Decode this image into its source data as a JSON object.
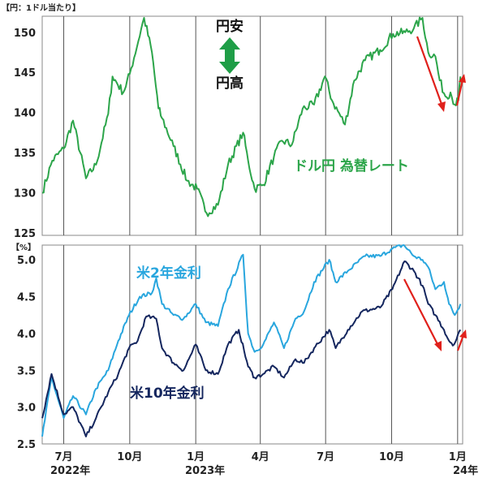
{
  "colors": {
    "usdjpy": "#2ca54a",
    "us2y": "#29a6de",
    "us10y": "#14265e",
    "arrow_red": "#e0201b",
    "arrow_green": "#1f9e47",
    "grid": "#999999"
  },
  "top_axis_unit": "【円：1ドル当たり】",
  "bottom_axis_unit": "【%】",
  "annotations": {
    "yen_weak": "円安",
    "yen_strong": "円高",
    "usdjpy_label": "ドル円 為替レート",
    "us2y_label": "米2年金利",
    "us10y_label": "米10年金利"
  },
  "x_axis": {
    "month_labels": [
      "7月",
      "10月",
      "1月",
      "4月",
      "7月",
      "10月",
      "1月"
    ],
    "year_labels": [
      "2022年",
      "2023年",
      "24年"
    ]
  },
  "chart_data": [
    {
      "type": "line",
      "title": "",
      "ylabel": "【円：1ドル当たり】",
      "ylim": [
        125,
        152
      ],
      "yticks": [
        125,
        130,
        135,
        140,
        145,
        150
      ],
      "x_range": [
        "2022-06-01",
        "2024-01-08"
      ],
      "grid": "vertical lines at quarter boundaries",
      "series": [
        {
          "name": "ドル円 為替レート",
          "points": [
            [
              "2022-06-01",
              130.0
            ],
            [
              "2022-06-15",
              134.0
            ],
            [
              "2022-07-01",
              135.5
            ],
            [
              "2022-07-14",
              139.0
            ],
            [
              "2022-08-01",
              131.8
            ],
            [
              "2022-08-15",
              133.5
            ],
            [
              "2022-09-01",
              139.8
            ],
            [
              "2022-09-07",
              144.5
            ],
            [
              "2022-09-22",
              142.5
            ],
            [
              "2022-10-01",
              144.8
            ],
            [
              "2022-10-21",
              151.8
            ],
            [
              "2022-11-01",
              147.5
            ],
            [
              "2022-11-10",
              140.5
            ],
            [
              "2022-11-15",
              139.3
            ],
            [
              "2022-12-01",
              135.8
            ],
            [
              "2022-12-20",
              131.5
            ],
            [
              "2023-01-03",
              130.5
            ],
            [
              "2023-01-16",
              127.5
            ],
            [
              "2023-02-01",
              128.5
            ],
            [
              "2023-02-15",
              133.5
            ],
            [
              "2023-03-08",
              137.5
            ],
            [
              "2023-03-15",
              134.0
            ],
            [
              "2023-03-24",
              130.5
            ],
            [
              "2023-04-05",
              131.0
            ],
            [
              "2023-04-20",
              134.5
            ],
            [
              "2023-05-01",
              136.5
            ],
            [
              "2023-05-15",
              136.0
            ],
            [
              "2023-05-30",
              140.5
            ],
            [
              "2023-06-15",
              141.0
            ],
            [
              "2023-06-30",
              144.5
            ],
            [
              "2023-07-10",
              141.5
            ],
            [
              "2023-07-28",
              138.5
            ],
            [
              "2023-08-10",
              144.0
            ],
            [
              "2023-08-25",
              146.5
            ],
            [
              "2023-09-15",
              147.8
            ],
            [
              "2023-10-03",
              149.8
            ],
            [
              "2023-10-20",
              150.0
            ],
            [
              "2023-11-01",
              150.5
            ],
            [
              "2023-11-13",
              151.8
            ],
            [
              "2023-11-21",
              147.5
            ],
            [
              "2023-12-01",
              147.0
            ],
            [
              "2023-12-07",
              144.0
            ],
            [
              "2023-12-15",
              142.0
            ],
            [
              "2023-12-22",
              142.5
            ],
            [
              "2023-12-28",
              141.0
            ],
            [
              "2024-01-02",
              141.5
            ],
            [
              "2024-01-05",
              144.5
            ]
          ]
        }
      ]
    },
    {
      "type": "line",
      "title": "",
      "ylabel": "【%】",
      "ylim": [
        2.5,
        5.2
      ],
      "yticks": [
        2.5,
        3.0,
        3.5,
        4.0,
        4.5,
        5.0
      ],
      "x_range": [
        "2022-06-01",
        "2024-01-08"
      ],
      "grid": "vertical lines at quarter boundaries",
      "series": [
        {
          "name": "米2年金利",
          "points": [
            [
              "2022-06-01",
              2.6
            ],
            [
              "2022-06-14",
              3.4
            ],
            [
              "2022-07-01",
              2.85
            ],
            [
              "2022-07-14",
              3.15
            ],
            [
              "2022-08-01",
              2.9
            ],
            [
              "2022-08-15",
              3.25
            ],
            [
              "2022-09-01",
              3.5
            ],
            [
              "2022-09-15",
              3.9
            ],
            [
              "2022-09-30",
              4.25
            ],
            [
              "2022-10-15",
              4.5
            ],
            [
              "2022-11-01",
              4.55
            ],
            [
              "2022-11-07",
              4.75
            ],
            [
              "2022-11-15",
              4.4
            ],
            [
              "2022-12-01",
              4.25
            ],
            [
              "2022-12-15",
              4.2
            ],
            [
              "2023-01-01",
              4.4
            ],
            [
              "2023-01-15",
              4.15
            ],
            [
              "2023-02-01",
              4.1
            ],
            [
              "2023-02-15",
              4.6
            ],
            [
              "2023-03-08",
              5.07
            ],
            [
              "2023-03-15",
              4.0
            ],
            [
              "2023-03-24",
              3.75
            ],
            [
              "2023-04-05",
              3.85
            ],
            [
              "2023-04-20",
              4.15
            ],
            [
              "2023-05-04",
              3.8
            ],
            [
              "2023-05-20",
              4.2
            ],
            [
              "2023-06-01",
              4.3
            ],
            [
              "2023-06-15",
              4.7
            ],
            [
              "2023-07-06",
              5.0
            ],
            [
              "2023-07-15",
              4.7
            ],
            [
              "2023-08-01",
              4.85
            ],
            [
              "2023-08-25",
              5.05
            ],
            [
              "2023-09-15",
              5.05
            ],
            [
              "2023-10-02",
              5.15
            ],
            [
              "2023-10-18",
              5.2
            ],
            [
              "2023-11-01",
              5.05
            ],
            [
              "2023-11-13",
              5.0
            ],
            [
              "2023-11-21",
              4.9
            ],
            [
              "2023-12-01",
              4.6
            ],
            [
              "2023-12-13",
              4.7
            ],
            [
              "2023-12-20",
              4.4
            ],
            [
              "2023-12-28",
              4.25
            ],
            [
              "2024-01-05",
              4.4
            ]
          ]
        },
        {
          "name": "米10年金利",
          "points": [
            [
              "2022-06-01",
              2.85
            ],
            [
              "2022-06-14",
              3.45
            ],
            [
              "2022-07-01",
              2.9
            ],
            [
              "2022-07-14",
              3.0
            ],
            [
              "2022-08-01",
              2.6
            ],
            [
              "2022-08-15",
              2.85
            ],
            [
              "2022-09-01",
              3.2
            ],
            [
              "2022-09-15",
              3.45
            ],
            [
              "2022-09-30",
              3.8
            ],
            [
              "2022-10-12",
              3.9
            ],
            [
              "2022-10-24",
              4.23
            ],
            [
              "2022-11-07",
              4.2
            ],
            [
              "2022-11-15",
              3.8
            ],
            [
              "2022-12-01",
              3.6
            ],
            [
              "2022-12-15",
              3.5
            ],
            [
              "2023-01-01",
              3.85
            ],
            [
              "2023-01-15",
              3.5
            ],
            [
              "2023-02-01",
              3.45
            ],
            [
              "2023-02-15",
              3.85
            ],
            [
              "2023-03-02",
              4.05
            ],
            [
              "2023-03-15",
              3.55
            ],
            [
              "2023-03-24",
              3.4
            ],
            [
              "2023-04-05",
              3.45
            ],
            [
              "2023-04-20",
              3.55
            ],
            [
              "2023-05-04",
              3.4
            ],
            [
              "2023-05-20",
              3.65
            ],
            [
              "2023-06-01",
              3.6
            ],
            [
              "2023-06-15",
              3.8
            ],
            [
              "2023-07-06",
              4.05
            ],
            [
              "2023-07-15",
              3.8
            ],
            [
              "2023-08-01",
              4.05
            ],
            [
              "2023-08-21",
              4.3
            ],
            [
              "2023-09-15",
              4.35
            ],
            [
              "2023-10-02",
              4.6
            ],
            [
              "2023-10-19",
              4.98
            ],
            [
              "2023-11-01",
              4.85
            ],
            [
              "2023-11-13",
              4.65
            ],
            [
              "2023-11-21",
              4.4
            ],
            [
              "2023-12-01",
              4.25
            ],
            [
              "2023-12-13",
              4.05
            ],
            [
              "2023-12-20",
              3.9
            ],
            [
              "2023-12-27",
              3.85
            ],
            [
              "2024-01-05",
              4.05
            ]
          ]
        }
      ]
    }
  ]
}
